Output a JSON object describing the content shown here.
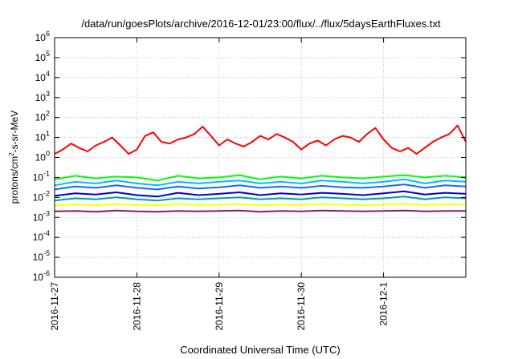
{
  "chart_data": {
    "type": "line",
    "title": "/data/run/goesPlots/archive/2016-12-01/23:00/flux/../flux/5daysEarthFluxes.txt",
    "xlabel": "Coordinated Universal Time (UTC)",
    "ylabel": {
      "prefix": "protons/cm",
      "sup": "2",
      "suffix": "-s-sr-MeV"
    },
    "yscale": "log",
    "ylim": [
      1e-06,
      1000000.0
    ],
    "grid": true,
    "x_ticks": [
      {
        "x": 0,
        "label": "2016-11-27"
      },
      {
        "x": 1,
        "label": "2016-11-28"
      },
      {
        "x": 2,
        "label": "2016-11-29"
      },
      {
        "x": 3,
        "label": "2016-11-30"
      },
      {
        "x": 4,
        "label": "2016-12-1"
      }
    ],
    "y_ticks": [
      {
        "exp": -6,
        "label_base": "10",
        "label_exp": "-6"
      },
      {
        "exp": -5,
        "label_base": "10",
        "label_exp": "-5"
      },
      {
        "exp": -4,
        "label_base": "10",
        "label_exp": "-4"
      },
      {
        "exp": -3,
        "label_base": "10",
        "label_exp": "-3"
      },
      {
        "exp": -2,
        "label_base": "10",
        "label_exp": "-2"
      },
      {
        "exp": -1,
        "label_base": "10",
        "label_exp": "-1"
      },
      {
        "exp": 0,
        "label_base": "10",
        "label_exp": "0"
      },
      {
        "exp": 1,
        "label_base": "10",
        "label_exp": "1"
      },
      {
        "exp": 2,
        "label_base": "10",
        "label_exp": "2"
      },
      {
        "exp": 3,
        "label_base": "10",
        "label_exp": "3"
      },
      {
        "exp": 4,
        "label_base": "10",
        "label_exp": "4"
      },
      {
        "exp": 5,
        "label_base": "10",
        "label_exp": "5"
      },
      {
        "exp": 6,
        "label_base": "10",
        "label_exp": "6"
      }
    ],
    "xlim": [
      0,
      5
    ],
    "series": [
      {
        "color": "#ff0000",
        "x": [
          0,
          0.1,
          0.2,
          0.3,
          0.4,
          0.5,
          0.6,
          0.7,
          0.8,
          0.9,
          1.0,
          1.1,
          1.2,
          1.3,
          1.4,
          1.5,
          1.6,
          1.7,
          1.8,
          1.9,
          2.0,
          2.1,
          2.2,
          2.3,
          2.4,
          2.5,
          2.6,
          2.7,
          2.8,
          2.9,
          3.0,
          3.1,
          3.2,
          3.3,
          3.4,
          3.5,
          3.6,
          3.7,
          3.8,
          3.9,
          4.0,
          4.1,
          4.2,
          4.3,
          4.4,
          4.5,
          4.6,
          4.7,
          4.8,
          4.9,
          5.0
        ],
        "y": [
          1.5,
          2.5,
          5,
          3,
          2,
          4,
          6,
          10,
          4,
          1.5,
          2.5,
          12,
          18,
          6,
          5,
          8,
          10,
          15,
          35,
          12,
          4,
          8,
          5,
          3.5,
          6,
          12,
          8,
          15,
          10,
          6,
          2.5,
          5,
          7,
          4,
          8,
          12,
          10,
          6,
          15,
          30,
          8,
          3,
          2,
          3,
          1.5,
          3,
          6,
          10,
          15,
          40,
          6
        ]
      },
      {
        "color": "#00ff00",
        "x": [
          0,
          0.25,
          0.5,
          0.75,
          1.0,
          1.25,
          1.5,
          1.75,
          2.0,
          2.25,
          2.5,
          2.75,
          3.0,
          3.25,
          3.5,
          3.75,
          4.0,
          4.25,
          4.5,
          4.75,
          5.0
        ],
        "y": [
          0.08,
          0.12,
          0.09,
          0.11,
          0.1,
          0.07,
          0.12,
          0.09,
          0.1,
          0.13,
          0.08,
          0.11,
          0.09,
          0.12,
          0.1,
          0.09,
          0.11,
          0.13,
          0.1,
          0.12,
          0.1
        ]
      },
      {
        "color": "#00bbff",
        "x": [
          0,
          0.25,
          0.5,
          0.75,
          1.0,
          1.25,
          1.5,
          1.75,
          2.0,
          2.25,
          2.5,
          2.75,
          3.0,
          3.25,
          3.5,
          3.75,
          4.0,
          4.25,
          4.5,
          4.75,
          5.0
        ],
        "y": [
          0.04,
          0.06,
          0.05,
          0.07,
          0.05,
          0.04,
          0.06,
          0.05,
          0.06,
          0.07,
          0.05,
          0.06,
          0.05,
          0.07,
          0.06,
          0.05,
          0.06,
          0.08,
          0.05,
          0.07,
          0.06
        ]
      },
      {
        "color": "#1a66ff",
        "x": [
          0,
          0.25,
          0.5,
          0.75,
          1.0,
          1.25,
          1.5,
          1.75,
          2.0,
          2.25,
          2.5,
          2.75,
          3.0,
          3.25,
          3.5,
          3.75,
          4.0,
          4.25,
          4.5,
          4.75,
          5.0
        ],
        "y": [
          0.025,
          0.035,
          0.03,
          0.04,
          0.03,
          0.025,
          0.035,
          0.028,
          0.032,
          0.04,
          0.03,
          0.035,
          0.03,
          0.038,
          0.032,
          0.03,
          0.035,
          0.045,
          0.03,
          0.04,
          0.035
        ]
      },
      {
        "color": "#0000cc",
        "x": [
          0,
          0.25,
          0.5,
          0.75,
          1.0,
          1.25,
          1.5,
          1.75,
          2.0,
          2.25,
          2.5,
          2.75,
          3.0,
          3.25,
          3.5,
          3.75,
          4.0,
          4.25,
          4.5,
          4.75,
          5.0
        ],
        "y": [
          0.012,
          0.016,
          0.014,
          0.018,
          0.013,
          0.011,
          0.017,
          0.013,
          0.015,
          0.018,
          0.013,
          0.016,
          0.014,
          0.017,
          0.015,
          0.013,
          0.016,
          0.02,
          0.014,
          0.017,
          0.015
        ]
      },
      {
        "color": "#00a0a0",
        "x": [
          0,
          0.25,
          0.5,
          0.75,
          1.0,
          1.25,
          1.5,
          1.75,
          2.0,
          2.25,
          2.5,
          2.75,
          3.0,
          3.25,
          3.5,
          3.75,
          4.0,
          4.25,
          4.5,
          4.75,
          5.0
        ],
        "y": [
          0.007,
          0.009,
          0.008,
          0.01,
          0.008,
          0.007,
          0.009,
          0.008,
          0.009,
          0.01,
          0.008,
          0.009,
          0.008,
          0.01,
          0.009,
          0.008,
          0.009,
          0.011,
          0.008,
          0.01,
          0.009
        ]
      },
      {
        "color": "#ffff00",
        "x": [
          0,
          0.25,
          0.5,
          0.75,
          1.0,
          1.25,
          1.5,
          1.75,
          2.0,
          2.25,
          2.5,
          2.75,
          3.0,
          3.25,
          3.5,
          3.75,
          4.0,
          4.25,
          4.5,
          4.75,
          5.0
        ],
        "y": [
          0.004,
          0.0045,
          0.004,
          0.0046,
          0.0042,
          0.004,
          0.0045,
          0.0041,
          0.0043,
          0.0046,
          0.004,
          0.0044,
          0.0042,
          0.0046,
          0.0043,
          0.0041,
          0.0044,
          0.0047,
          0.0042,
          0.0045,
          0.0044
        ]
      },
      {
        "color": "#8b1a6b",
        "x": [
          0,
          0.25,
          0.5,
          0.75,
          1.0,
          1.25,
          1.5,
          1.75,
          2.0,
          2.25,
          2.5,
          2.75,
          3.0,
          3.25,
          3.5,
          3.75,
          4.0,
          4.25,
          4.5,
          4.75,
          5.0
        ],
        "y": [
          0.002,
          0.0021,
          0.0019,
          0.0022,
          0.002,
          0.0019,
          0.0021,
          0.002,
          0.0021,
          0.0022,
          0.0019,
          0.0021,
          0.002,
          0.0022,
          0.0021,
          0.002,
          0.0021,
          0.0022,
          0.002,
          0.0021,
          0.0021
        ]
      }
    ]
  }
}
